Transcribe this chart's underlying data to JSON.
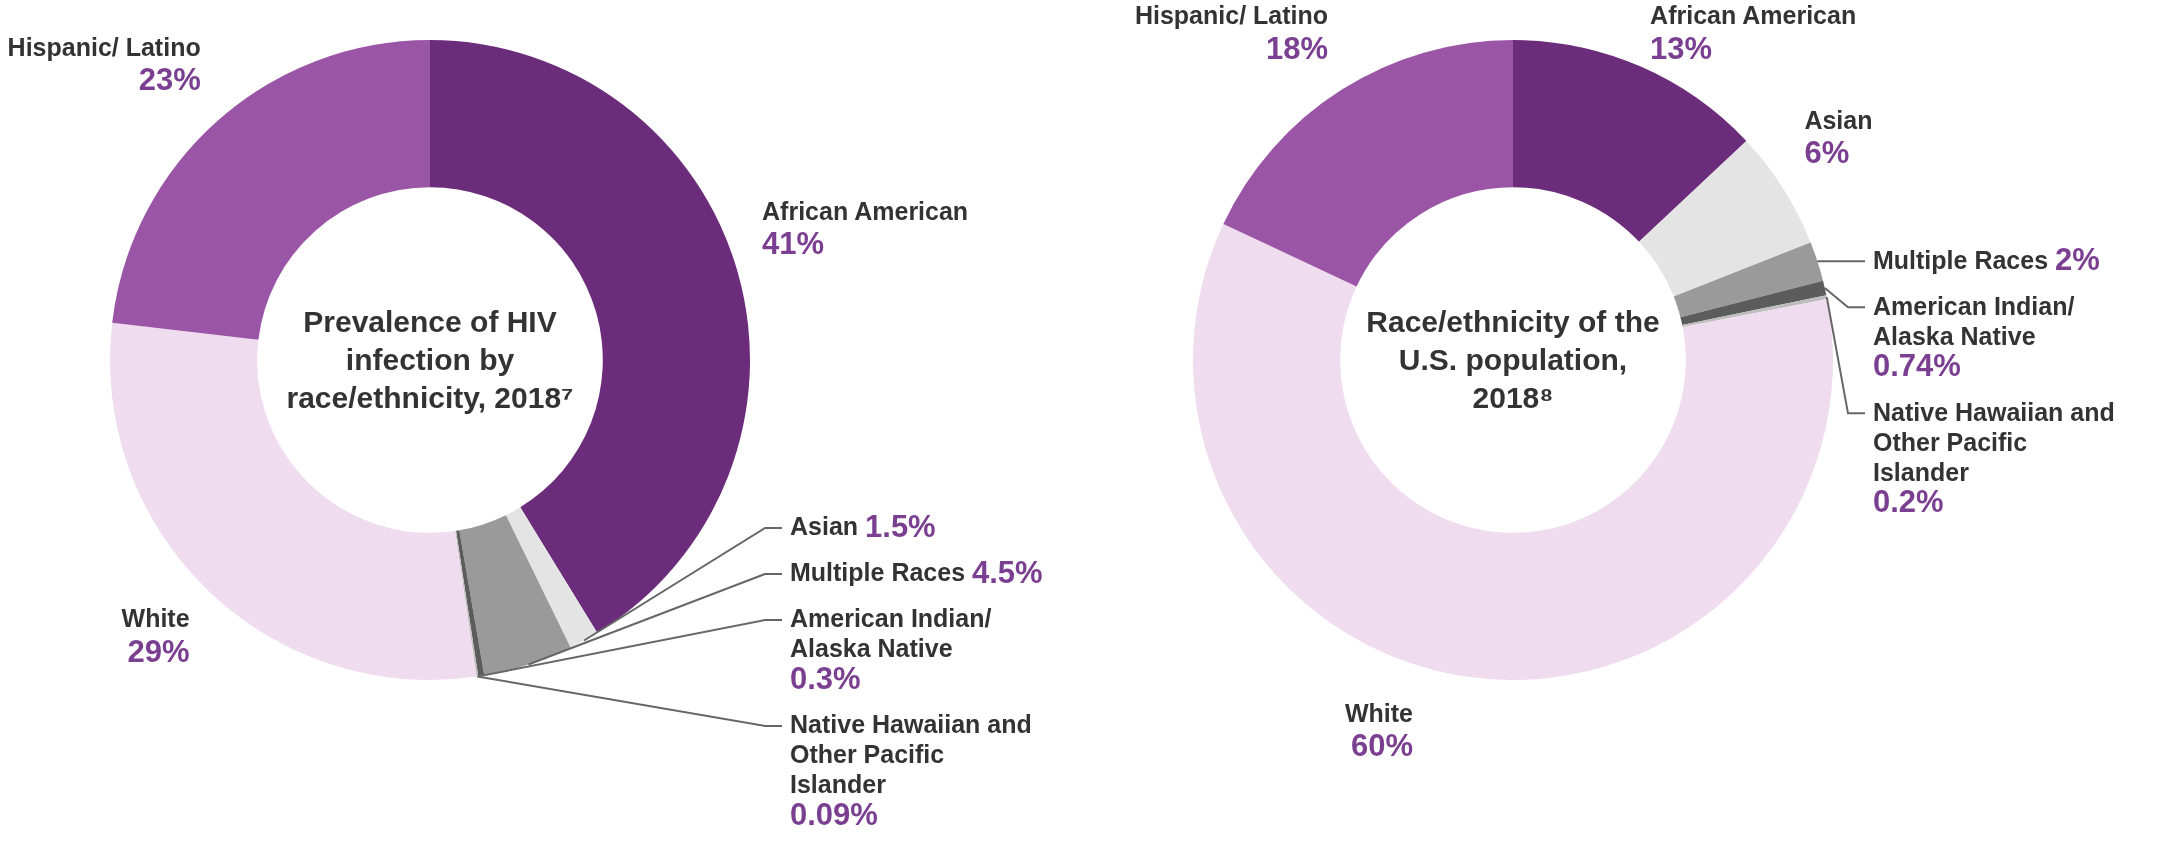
{
  "chart_data": [
    {
      "type": "donut",
      "title": "Prevalence of HIV infection by race/ethnicity, 2018⁷",
      "categories": [
        "African American",
        "Asian",
        "Multiple Races",
        "American Indian/ Alaska Native",
        "Native Hawaiian and Other Pacific Islander",
        "White",
        "Hispanic/ Latino"
      ],
      "values": [
        41,
        1.5,
        4.5,
        0.3,
        0.09,
        29,
        23
      ],
      "value_labels": [
        "41%",
        "1.5%",
        "4.5%",
        "0.3%",
        "0.09%",
        "29%",
        "23%"
      ],
      "colors": [
        "#6b2d7b",
        "#e4e4e4",
        "#9a9a9a",
        "#5c5c5c",
        "#bdbdbd",
        "#efdcee",
        "#9b55a6"
      ]
    },
    {
      "type": "donut",
      "title": "Race/ethnicity of the U.S. population, 2018⁸",
      "categories": [
        "African American",
        "Asian",
        "Multiple Races",
        "American Indian/ Alaska Native",
        "Native Hawaiian and Other Pacific Islander",
        "White",
        "Hispanic/ Latino"
      ],
      "values": [
        13,
        6,
        2,
        0.74,
        0.2,
        60,
        18
      ],
      "value_labels": [
        "13%",
        "6%",
        "2%",
        "0.74%",
        "0.2%",
        "60%",
        "18%"
      ],
      "colors": [
        "#6b2d7b",
        "#e4e4e4",
        "#9a9a9a",
        "#5c5c5c",
        "#bdbdbd",
        "#efdcee",
        "#9b55a6"
      ]
    }
  ]
}
